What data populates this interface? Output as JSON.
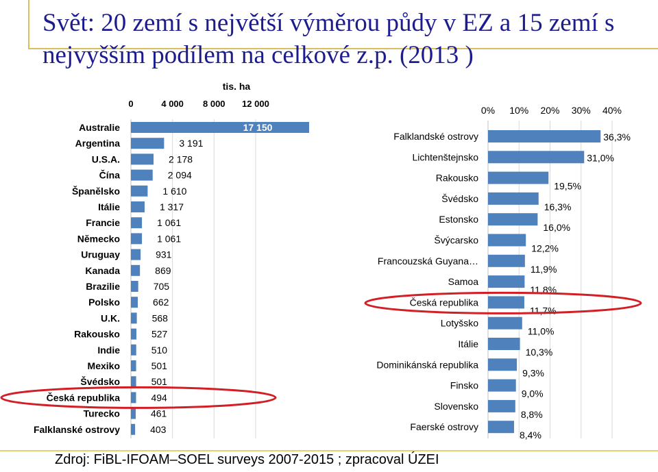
{
  "title": "Svět: 20 zemí s největší výměrou půdy v EZ a 15 zemí s nejvyšším podílem na celkové z.p. (2013 )",
  "source": "Zdroj: FiBL-IFOAM–SOEL surveys 2007-2015 ; zpracoval ÚZEI",
  "colors": {
    "bar": "#4f81bd",
    "title": "#1c1c8f",
    "highlight": "#d21f26",
    "accent_line": "#d8c060"
  },
  "chart_data": [
    {
      "type": "bar",
      "orientation": "horizontal",
      "unit_label": "tis. ha",
      "xlim": [
        0,
        17150
      ],
      "x_ticks": [
        "0",
        "4 000",
        "8 000",
        "12 000"
      ],
      "x_tick_values": [
        0,
        4000,
        8000,
        12000
      ],
      "categories": [
        "Australie",
        "Argentina",
        "U.S.A.",
        "Čína",
        "Španělsko",
        "Itálie",
        "Francie",
        "Německo",
        "Uruguay",
        "Kanada",
        "Brazilie",
        "Polsko",
        "U.K.",
        "Rakousko",
        "Indie",
        "Mexiko",
        "Švédsko",
        "Česká republika",
        "Turecko",
        "Falklanské ostrovy"
      ],
      "values": [
        17150,
        3191,
        2178,
        2094,
        1610,
        1317,
        1061,
        1061,
        931,
        869,
        705,
        662,
        568,
        527,
        510,
        501,
        501,
        494,
        461,
        403
      ],
      "value_labels": [
        "17 150",
        "3 191",
        "2 178",
        "2 094",
        "1 610",
        "1 317",
        "1 061",
        "1 061",
        "931",
        "869",
        "705",
        "662",
        "568",
        "527",
        "510",
        "501",
        "501",
        "494",
        "461",
        "403"
      ],
      "highlighted": "Česká republika",
      "grid": true
    },
    {
      "type": "bar",
      "orientation": "horizontal",
      "xlim": [
        0,
        40
      ],
      "x_ticks": [
        "0%",
        "10%",
        "20%",
        "30%",
        "40%"
      ],
      "x_tick_values": [
        0,
        10,
        20,
        30,
        40
      ],
      "categories": [
        "Falklandské ostrovy",
        "Lichtenštejnsko",
        "Rakousko",
        "Švédsko",
        "Estonsko",
        "Švýcarsko",
        "Francouzská Guyana…",
        "Samoa",
        "Česká republika",
        "Lotyšsko",
        "Itálie",
        "Dominikánská republika",
        "Finsko",
        "Slovensko",
        "Faerské ostrovy"
      ],
      "values": [
        36.3,
        31.0,
        19.5,
        16.3,
        16.0,
        12.2,
        11.9,
        11.8,
        11.7,
        11.0,
        10.3,
        9.3,
        9.0,
        8.8,
        8.4
      ],
      "value_labels": [
        "36,3%",
        "31,0%",
        "19,5%",
        "16,3%",
        "16,0%",
        "12,2%",
        "11,9%",
        "11,8%",
        "11,7%",
        "11,0%",
        "10,3%",
        "9,3%",
        "9,0%",
        "8,8%",
        "8,4%"
      ],
      "highlighted": "Česká republika",
      "grid": true
    }
  ]
}
